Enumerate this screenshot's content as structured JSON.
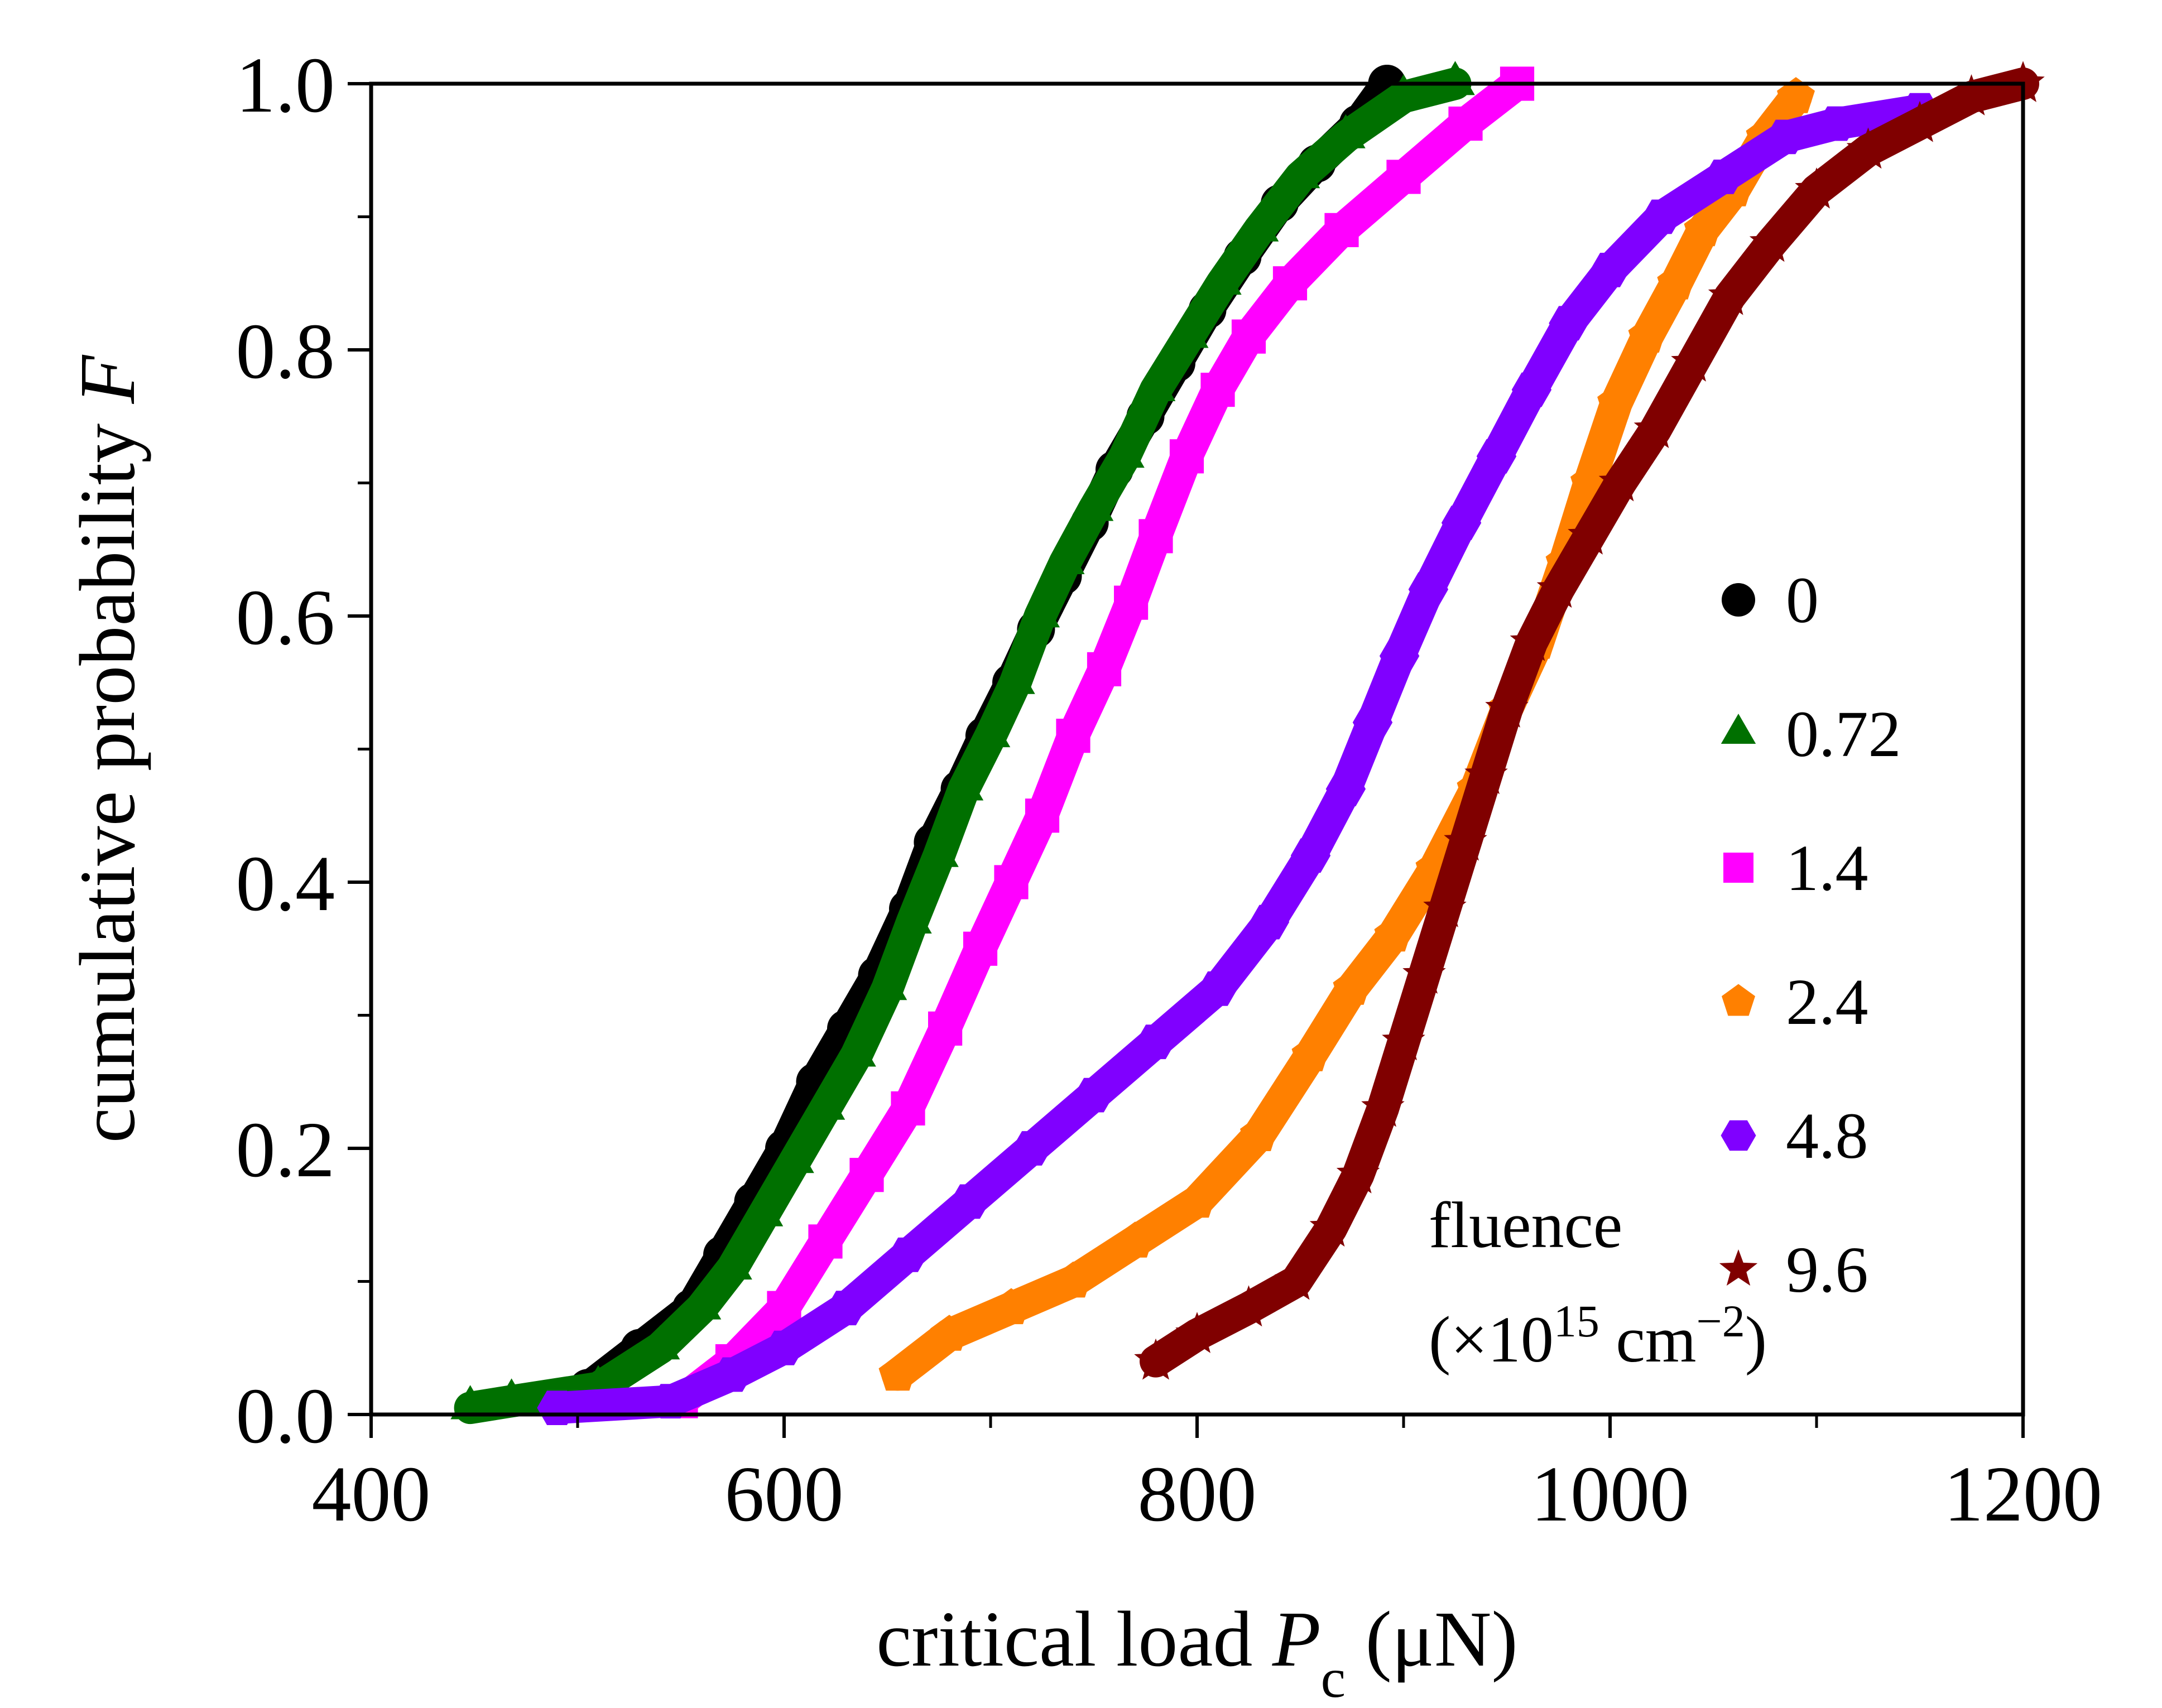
{
  "chart_data": {
    "type": "scatter",
    "xlabel": {
      "pre": "critical load ",
      "var": "P",
      "sub": "c",
      "post": " (μN)"
    },
    "ylabel": {
      "pre": "cumulative probability ",
      "var": "F"
    },
    "xlim": [
      400,
      1200
    ],
    "ylim": [
      0,
      1.0
    ],
    "xticks": [
      "400",
      "600",
      "800",
      "1000",
      "1200"
    ],
    "yticks": [
      "0.0",
      "0.2",
      "0.4",
      "0.6",
      "0.8",
      "1.0"
    ],
    "legend": {
      "position": "bottom-right",
      "title_line1": "fluence",
      "title_line2": {
        "pre": "(×10",
        "sup1": "15",
        "mid": " cm",
        "sup2": "−2",
        "post": ")"
      }
    },
    "series": [
      {
        "name": "0",
        "marker": "circle",
        "color": "#000000",
        "x": [
          505,
          530,
          555,
          570,
          585,
          600,
          615,
          630,
          645,
          660,
          672,
          685,
          697,
          710,
          722,
          735,
          748,
          760,
          775,
          790,
          805,
          822,
          840,
          858,
          878,
          892
        ],
        "y": [
          0.02,
          0.05,
          0.08,
          0.12,
          0.16,
          0.2,
          0.25,
          0.29,
          0.33,
          0.38,
          0.43,
          0.47,
          0.51,
          0.55,
          0.59,
          0.63,
          0.67,
          0.71,
          0.75,
          0.79,
          0.83,
          0.87,
          0.91,
          0.94,
          0.97,
          1.0
        ]
      },
      {
        "name": "0.72",
        "marker": "triangle",
        "color": "#007000",
        "x": [
          448,
          468,
          510,
          540,
          560,
          575,
          590,
          605,
          620,
          635,
          650,
          662,
          675,
          687,
          700,
          712,
          724,
          736,
          750,
          765,
          780,
          796,
          812,
          830,
          850,
          872,
          900,
          925
        ],
        "y": [
          0.005,
          0.01,
          0.02,
          0.05,
          0.08,
          0.11,
          0.15,
          0.19,
          0.23,
          0.27,
          0.32,
          0.37,
          0.42,
          0.47,
          0.51,
          0.55,
          0.6,
          0.64,
          0.68,
          0.72,
          0.77,
          0.81,
          0.85,
          0.89,
          0.93,
          0.96,
          0.99,
          1.0
        ]
      },
      {
        "name": "1.4",
        "marker": "square",
        "color": "#ff00ff",
        "x": [
          550,
          575,
          600,
          620,
          640,
          660,
          678,
          695,
          710,
          725,
          740,
          755,
          768,
          780,
          795,
          810,
          825,
          845,
          870,
          900,
          930,
          955
        ],
        "y": [
          0.01,
          0.04,
          0.08,
          0.13,
          0.18,
          0.23,
          0.29,
          0.35,
          0.4,
          0.45,
          0.51,
          0.56,
          0.61,
          0.66,
          0.72,
          0.77,
          0.81,
          0.85,
          0.89,
          0.93,
          0.97,
          1.0
        ]
      },
      {
        "name": "2.4",
        "marker": "pentagon",
        "color": "#ff8000",
        "x": [
          655,
          680,
          710,
          740,
          770,
          800,
          830,
          855,
          875,
          895,
          915,
          935,
          950,
          965,
          978,
          990,
          1003,
          1018,
          1032,
          1045,
          1060,
          1075,
          1090
        ],
        "y": [
          0.03,
          0.06,
          0.08,
          0.1,
          0.13,
          0.16,
          0.21,
          0.27,
          0.32,
          0.36,
          0.41,
          0.47,
          0.53,
          0.58,
          0.64,
          0.7,
          0.76,
          0.81,
          0.85,
          0.89,
          0.92,
          0.96,
          0.99
        ]
      },
      {
        "name": "4.8",
        "marker": "hexagon",
        "color": "#8000ff",
        "x": [
          490,
          545,
          575,
          600,
          630,
          660,
          690,
          720,
          750,
          780,
          810,
          835,
          855,
          872,
          885,
          898,
          912,
          928,
          945,
          962,
          980,
          1000,
          1025,
          1055,
          1085,
          1110,
          1150
        ],
        "y": [
          0.005,
          0.01,
          0.03,
          0.05,
          0.08,
          0.12,
          0.16,
          0.2,
          0.24,
          0.28,
          0.32,
          0.37,
          0.42,
          0.47,
          0.52,
          0.57,
          0.62,
          0.67,
          0.72,
          0.77,
          0.82,
          0.86,
          0.9,
          0.93,
          0.96,
          0.97,
          0.98
        ]
      },
      {
        "name": "9.6",
        "marker": "star",
        "color": "#800000",
        "x": [
          780,
          800,
          825,
          848,
          865,
          878,
          890,
          900,
          910,
          920,
          930,
          940,
          950,
          962,
          975,
          990,
          1005,
          1022,
          1040,
          1058,
          1078,
          1100,
          1125,
          1150,
          1175,
          1200
        ],
        "y": [
          0.04,
          0.06,
          0.08,
          0.1,
          0.14,
          0.18,
          0.23,
          0.28,
          0.33,
          0.38,
          0.43,
          0.48,
          0.53,
          0.58,
          0.62,
          0.66,
          0.7,
          0.74,
          0.79,
          0.84,
          0.88,
          0.92,
          0.95,
          0.97,
          0.99,
          1.0
        ]
      }
    ]
  }
}
